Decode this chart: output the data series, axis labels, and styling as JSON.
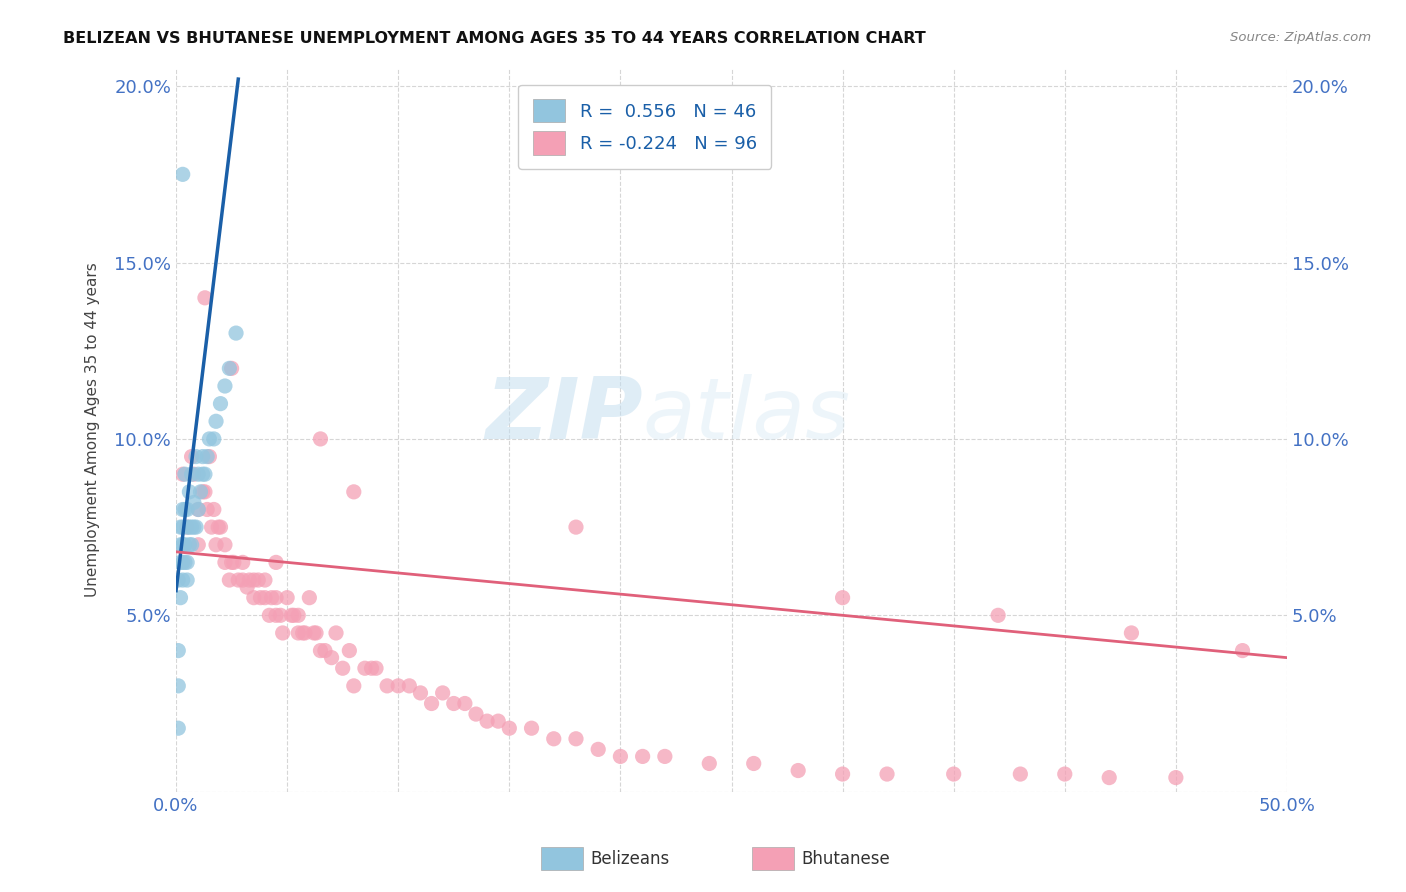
{
  "title": "BELIZEAN VS BHUTANESE UNEMPLOYMENT AMONG AGES 35 TO 44 YEARS CORRELATION CHART",
  "source": "Source: ZipAtlas.com",
  "ylabel": "Unemployment Among Ages 35 to 44 years",
  "xlim": [
    0.0,
    0.5
  ],
  "ylim": [
    0.0,
    0.205
  ],
  "xticks": [
    0.0,
    0.05,
    0.1,
    0.15,
    0.2,
    0.25,
    0.3,
    0.35,
    0.4,
    0.45,
    0.5
  ],
  "yticks": [
    0.0,
    0.05,
    0.1,
    0.15,
    0.2
  ],
  "yticklabels": [
    "",
    "5.0%",
    "10.0%",
    "15.0%",
    "20.0%"
  ],
  "belizean_color": "#92c5de",
  "bhutanese_color": "#f4a0b5",
  "trendline_belizean_color": "#1a5fa8",
  "trendline_bhutanese_color": "#e0607a",
  "legend_R_belizean": "0.556",
  "legend_N_belizean": "46",
  "legend_R_bhutanese": "-0.224",
  "legend_N_bhutanese": "96",
  "watermark_zip": "ZIP",
  "watermark_atlas": "atlas",
  "belizean_x": [
    0.001,
    0.001,
    0.001,
    0.002,
    0.002,
    0.002,
    0.002,
    0.003,
    0.003,
    0.003,
    0.003,
    0.003,
    0.004,
    0.004,
    0.004,
    0.004,
    0.005,
    0.005,
    0.005,
    0.005,
    0.006,
    0.006,
    0.006,
    0.007,
    0.007,
    0.007,
    0.008,
    0.008,
    0.009,
    0.009,
    0.01,
    0.01,
    0.011,
    0.012,
    0.012,
    0.013,
    0.014,
    0.015,
    0.017,
    0.018,
    0.02,
    0.022,
    0.024,
    0.027,
    0.001,
    0.003
  ],
  "belizean_y": [
    0.03,
    0.04,
    0.06,
    0.055,
    0.065,
    0.07,
    0.075,
    0.06,
    0.065,
    0.07,
    0.075,
    0.08,
    0.065,
    0.07,
    0.08,
    0.09,
    0.06,
    0.065,
    0.075,
    0.08,
    0.07,
    0.075,
    0.085,
    0.07,
    0.075,
    0.09,
    0.075,
    0.082,
    0.075,
    0.095,
    0.08,
    0.09,
    0.085,
    0.09,
    0.095,
    0.09,
    0.095,
    0.1,
    0.1,
    0.105,
    0.11,
    0.115,
    0.12,
    0.13,
    0.018,
    0.175
  ],
  "bhutanese_x": [
    0.003,
    0.005,
    0.007,
    0.008,
    0.01,
    0.01,
    0.012,
    0.013,
    0.014,
    0.015,
    0.016,
    0.017,
    0.018,
    0.019,
    0.02,
    0.022,
    0.022,
    0.024,
    0.025,
    0.026,
    0.028,
    0.03,
    0.03,
    0.032,
    0.033,
    0.035,
    0.035,
    0.037,
    0.038,
    0.04,
    0.04,
    0.042,
    0.043,
    0.045,
    0.045,
    0.047,
    0.048,
    0.05,
    0.052,
    0.053,
    0.055,
    0.055,
    0.057,
    0.058,
    0.06,
    0.062,
    0.063,
    0.065,
    0.067,
    0.07,
    0.072,
    0.075,
    0.078,
    0.08,
    0.085,
    0.088,
    0.09,
    0.095,
    0.1,
    0.105,
    0.11,
    0.115,
    0.12,
    0.125,
    0.13,
    0.135,
    0.14,
    0.145,
    0.15,
    0.16,
    0.17,
    0.18,
    0.19,
    0.2,
    0.21,
    0.22,
    0.24,
    0.26,
    0.28,
    0.3,
    0.32,
    0.35,
    0.38,
    0.4,
    0.42,
    0.45,
    0.013,
    0.025,
    0.045,
    0.065,
    0.08,
    0.18,
    0.3,
    0.37,
    0.43,
    0.48
  ],
  "bhutanese_y": [
    0.09,
    0.075,
    0.095,
    0.09,
    0.07,
    0.08,
    0.085,
    0.085,
    0.08,
    0.095,
    0.075,
    0.08,
    0.07,
    0.075,
    0.075,
    0.065,
    0.07,
    0.06,
    0.065,
    0.065,
    0.06,
    0.06,
    0.065,
    0.058,
    0.06,
    0.055,
    0.06,
    0.06,
    0.055,
    0.055,
    0.06,
    0.05,
    0.055,
    0.05,
    0.055,
    0.05,
    0.045,
    0.055,
    0.05,
    0.05,
    0.045,
    0.05,
    0.045,
    0.045,
    0.055,
    0.045,
    0.045,
    0.04,
    0.04,
    0.038,
    0.045,
    0.035,
    0.04,
    0.03,
    0.035,
    0.035,
    0.035,
    0.03,
    0.03,
    0.03,
    0.028,
    0.025,
    0.028,
    0.025,
    0.025,
    0.022,
    0.02,
    0.02,
    0.018,
    0.018,
    0.015,
    0.015,
    0.012,
    0.01,
    0.01,
    0.01,
    0.008,
    0.008,
    0.006,
    0.005,
    0.005,
    0.005,
    0.005,
    0.005,
    0.004,
    0.004,
    0.14,
    0.12,
    0.065,
    0.1,
    0.085,
    0.075,
    0.055,
    0.05,
    0.045,
    0.04
  ]
}
